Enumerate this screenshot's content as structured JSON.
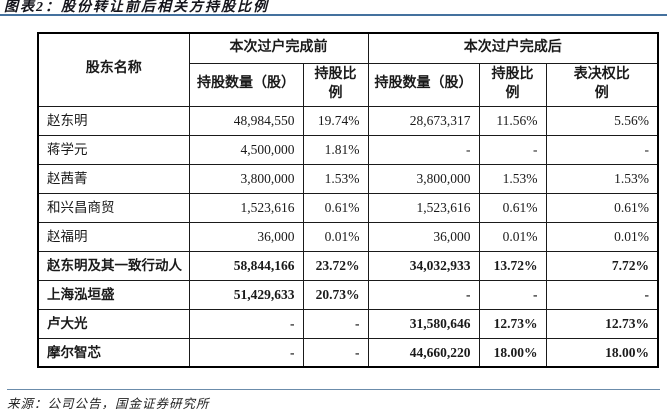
{
  "title": "图表2：股份转让前后相关方持股比例",
  "source_note": "来源：公司公告，国金证券研究所",
  "colors": {
    "accent_rule": "#44719e",
    "table_border": "#000000",
    "text": "#1a1a1a"
  },
  "table": {
    "header": {
      "shareholder": "股东名称",
      "group_before": "本次过户完成前",
      "group_after": "本次过户完成后",
      "qty_before": "持股数量（股）",
      "ratio_before": "持股比\n例",
      "qty_after": "持股数量（股）",
      "ratio_after": "持股比\n例",
      "voting_ratio": "表决权比\n例"
    },
    "rows": [
      {
        "name": "赵东明",
        "before_qty": "48,984,550",
        "before_ratio": "19.74%",
        "after_qty": "28,673,317",
        "after_ratio": "11.56%",
        "voting_ratio": "5.56%",
        "bold": false
      },
      {
        "name": "蒋学元",
        "before_qty": "4,500,000",
        "before_ratio": "1.81%",
        "after_qty": "-",
        "after_ratio": "-",
        "voting_ratio": "-",
        "bold": false
      },
      {
        "name": "赵茜菁",
        "before_qty": "3,800,000",
        "before_ratio": "1.53%",
        "after_qty": "3,800,000",
        "after_ratio": "1.53%",
        "voting_ratio": "1.53%",
        "bold": false
      },
      {
        "name": "和兴昌商贸",
        "before_qty": "1,523,616",
        "before_ratio": "0.61%",
        "after_qty": "1,523,616",
        "after_ratio": "0.61%",
        "voting_ratio": "0.61%",
        "bold": false
      },
      {
        "name": "赵福明",
        "before_qty": "36,000",
        "before_ratio": "0.01%",
        "after_qty": "36,000",
        "after_ratio": "0.01%",
        "voting_ratio": "0.01%",
        "bold": false
      },
      {
        "name": "赵东明及其一致行动人",
        "before_qty": "58,844,166",
        "before_ratio": "23.72%",
        "after_qty": "34,032,933",
        "after_ratio": "13.72%",
        "voting_ratio": "7.72%",
        "bold": true
      },
      {
        "name": "上海泓垣盛",
        "before_qty": "51,429,633",
        "before_ratio": "20.73%",
        "after_qty": "-",
        "after_ratio": "-",
        "voting_ratio": "-",
        "bold": true
      },
      {
        "name": "卢大光",
        "before_qty": "-",
        "before_ratio": "-",
        "after_qty": "31,580,646",
        "after_ratio": "12.73%",
        "voting_ratio": "12.73%",
        "bold": true
      },
      {
        "name": "摩尔智芯",
        "before_qty": "-",
        "before_ratio": "-",
        "after_qty": "44,660,220",
        "after_ratio": "18.00%",
        "voting_ratio": "18.00%",
        "bold": true
      }
    ]
  }
}
